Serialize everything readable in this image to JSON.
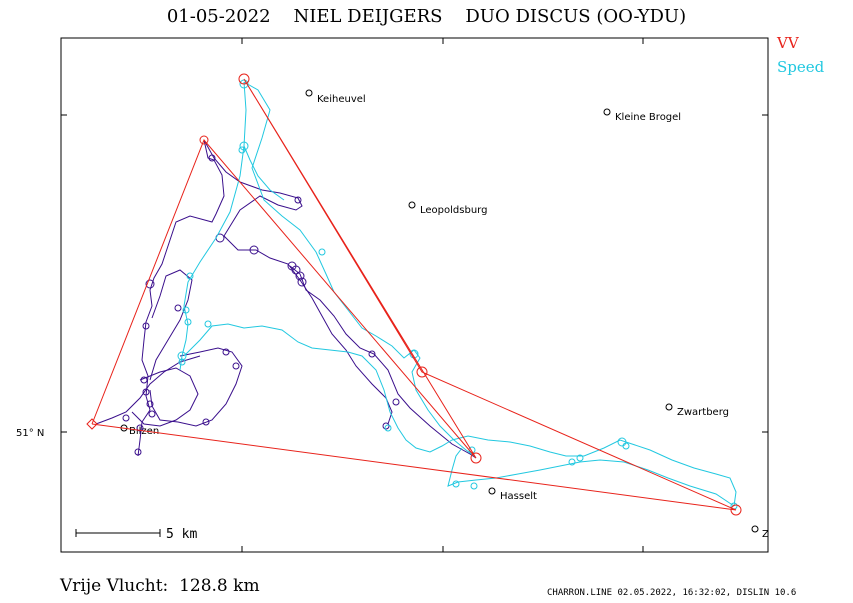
{
  "header": {
    "title": "01-05-2022    NIEL DEIJGERS    DUO DISCUS (OO-YDU)"
  },
  "legend": {
    "items": [
      {
        "label": "VV",
        "color": "#e8231b"
      },
      {
        "label": "Speed",
        "color": "#22c8e0"
      }
    ]
  },
  "map": {
    "latitude_label": "51° N",
    "scale_label": "5 km",
    "towns": [
      {
        "name": "Keiheuvel"
      },
      {
        "name": "Kleine Brogel"
      },
      {
        "name": "Leopoldsburg"
      },
      {
        "name": "Zwartberg"
      },
      {
        "name": "Bilzen"
      },
      {
        "name": "Hasselt"
      },
      {
        "name": "Z"
      }
    ],
    "track_colors": {
      "dark": "#3a0f8c",
      "light": "#22c8e0",
      "task": "#e8231b"
    }
  },
  "summary": {
    "distance_text": "Vrije Vlucht:  128.8 km"
  },
  "footer": {
    "text": "CHARRON.LINE 02.05.2022, 16:32:02, DISLIN 10.6"
  }
}
